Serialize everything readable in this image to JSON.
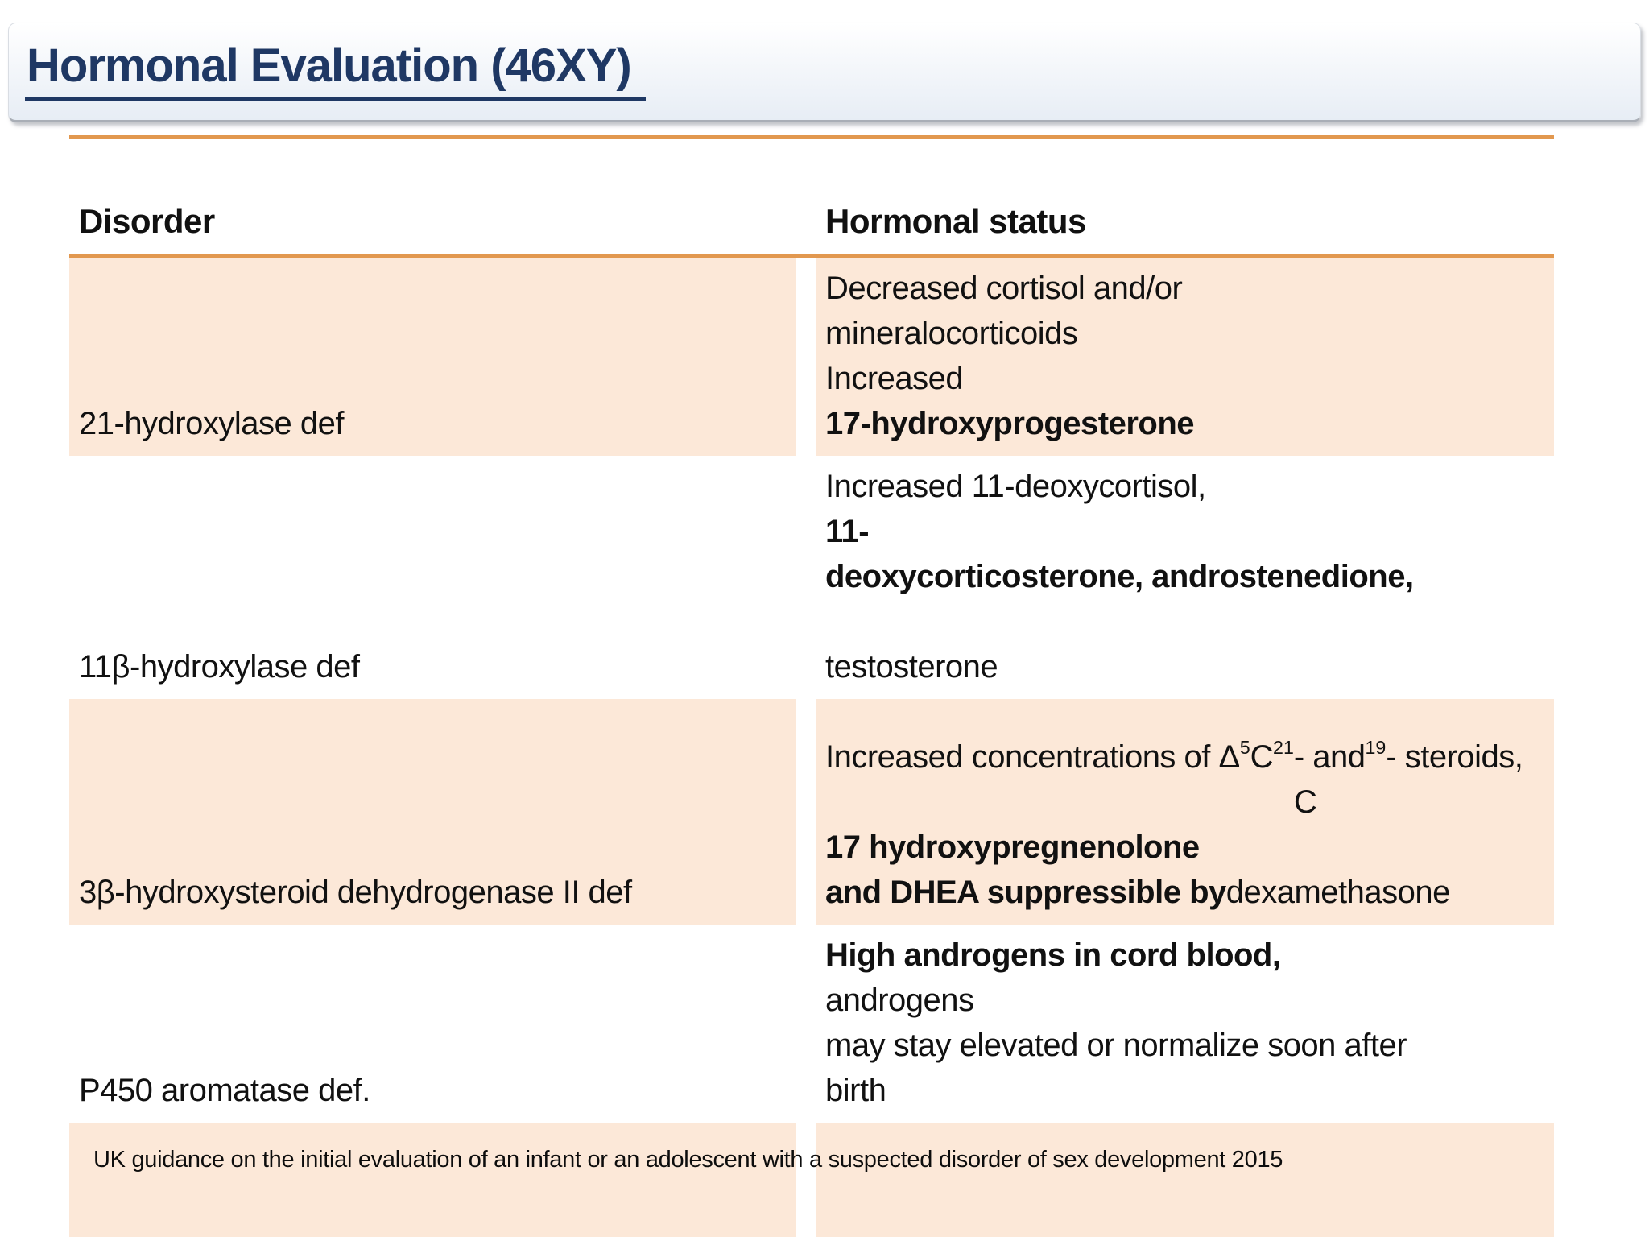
{
  "title": "Hormonal Evaluation (46XY)",
  "table": {
    "headers": [
      "Disorder",
      "Hormonal status"
    ],
    "rows": [
      {
        "shaded": true,
        "disorder": "21-hydroxylase def",
        "status": [
          {
            "t": "Decreased cortisol and/or\nmineralocorticoids\nIncreased "
          },
          {
            "t": "17-hydroxyprogesterone",
            "b": true
          }
        ]
      },
      {
        "shaded": false,
        "disorder": "11β-hydroxylase def",
        "status": [
          {
            "t": "Increased 11-deoxycortisol, "
          },
          {
            "t": "11-\ndeoxycorticosterone, androstenedione,",
            "b": true
          },
          {
            "t": "\ntestosterone"
          }
        ]
      },
      {
        "shaded": true,
        "disorder": "3β-hydroxysteroid dehydrogenase II def",
        "status": [
          {
            "t": "Increased concentrations of Δ"
          },
          {
            "t": "5",
            "sup": true
          },
          {
            "t": " C"
          },
          {
            "t": "21",
            "sub": true
          },
          {
            "t": "- and\nC"
          },
          {
            "t": "19",
            "sub": true
          },
          {
            "t": "- steroids, "
          },
          {
            "t": "17 hydroxypregnenolone\nand DHEA suppressible by",
            "b": true
          },
          {
            "t": "\ndexamethasone"
          }
        ]
      },
      {
        "shaded": false,
        "disorder": "P450 aromatase def.",
        "status": [
          {
            "t": "High androgens in cord blood,",
            "b": true
          },
          {
            "t": " androgens\nmay stay elevated or normalize soon after\nbirth"
          }
        ]
      },
      {
        "shaded": true,
        "disorder": "",
        "status": []
      }
    ]
  },
  "footer": "UK guidance on the initial evaluation of an infant or an adolescent with a suspected disorder of sex development 2015",
  "colors": {
    "title_text": "#1f3864",
    "accent_rule": "#e2984f",
    "row_shade": "#fce8d8",
    "body_text": "#111111"
  }
}
